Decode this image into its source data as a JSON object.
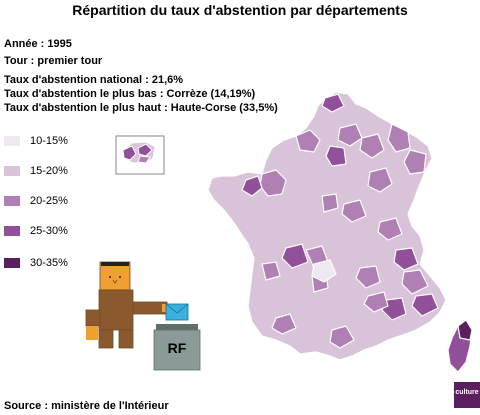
{
  "title": "Répartition du taux d'abstention par départements",
  "info": {
    "annee": "Année : 1995",
    "tour": "Tour : premier tour",
    "national": "Taux d'abstention national : 21,6%",
    "bas": "Taux d'abstention le plus bas : Corrèze (14,19%)",
    "haut": "Taux d'abstention le plus haut : Haute-Corse (33,5%)"
  },
  "legend": [
    {
      "label": "10-15%",
      "color": "#eee8f0"
    },
    {
      "label": "15-20%",
      "color": "#d8c3d8"
    },
    {
      "label": "20-25%",
      "color": "#b07fb4"
    },
    {
      "label": "25-30%",
      "color": "#92509a"
    },
    {
      "label": "30-35%",
      "color": "#5b1f5f"
    }
  ],
  "illustration": {
    "box_label": "RF"
  },
  "logo": {
    "text": "culture"
  },
  "source": "Source : ministère de l'Intérieur"
}
